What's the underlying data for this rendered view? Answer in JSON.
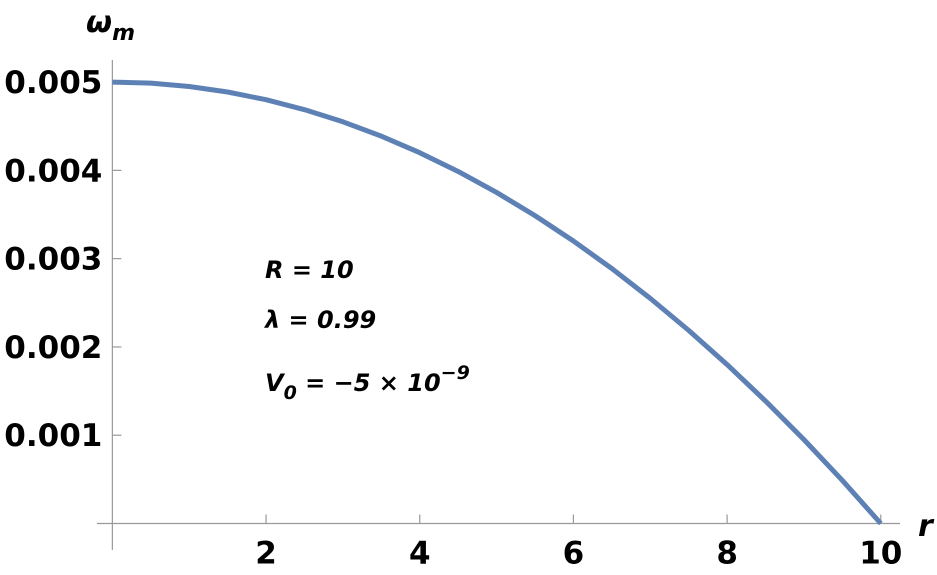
{
  "chart_data": {
    "type": "line",
    "x_label": "r",
    "y_label": [
      {
        "text": "ω"
      },
      {
        "text": "m",
        "baseline": "sub"
      }
    ],
    "annotations": [
      [
        {
          "text": "R = 10"
        }
      ],
      [
        {
          "text": "λ = 0.99"
        }
      ],
      [
        {
          "text": "V"
        },
        {
          "text": "0",
          "baseline": "sub"
        },
        {
          "text": " = −5 × 10"
        },
        {
          "text": "−9",
          "baseline": "super"
        }
      ]
    ],
    "x": [
      0,
      0.5,
      1,
      1.5,
      2,
      2.5,
      3,
      3.5,
      4,
      4.5,
      5,
      5.5,
      6,
      6.5,
      7,
      7.5,
      8,
      8.5,
      9,
      9.5,
      10
    ],
    "series": [
      {
        "color": "#5e81b5",
        "values": [
          0.005,
          0.0049875,
          0.00495,
          0.0048875,
          0.0048,
          0.0046875,
          0.00455,
          0.0043875,
          0.0042,
          0.0039875,
          0.00375,
          0.0034875,
          0.0032,
          0.0028875,
          0.00255,
          0.0021875,
          0.0018,
          0.0013875,
          0.00095,
          0.0004875,
          0
        ]
      }
    ],
    "xlim": [
      -0.2,
      10.25
    ],
    "ylim": [
      -0.0003,
      0.00525
    ],
    "xticks": [
      2,
      4,
      6,
      8,
      10
    ],
    "yticks": [
      0.001,
      0.002,
      0.003,
      0.004,
      0.005
    ],
    "grid": false
  }
}
